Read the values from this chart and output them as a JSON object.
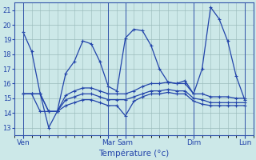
{
  "xlabel": "Température (°c)",
  "bg_color": "#cce8e8",
  "grid_color": "#99bbbb",
  "line_color": "#2244aa",
  "ylim": [
    12.5,
    21.5
  ],
  "yticks": [
    13,
    14,
    15,
    16,
    17,
    18,
    19,
    20,
    21
  ],
  "xlim": [
    0,
    14
  ],
  "xtick_major_positions": [
    0.5,
    5.5,
    6.5,
    10.5,
    13.5
  ],
  "xtick_major_labels": [
    "Ven",
    "Mar",
    "Sam",
    "Dim",
    "Lun"
  ],
  "vline_positions": [
    0.5,
    5.5,
    6.5,
    10.5,
    13.5
  ],
  "series": [
    {
      "x": [
        0.5,
        1.0,
        1.5,
        2.0,
        2.5,
        3.0,
        3.5,
        4.0,
        4.5,
        5.0,
        5.5,
        6.0,
        6.5,
        7.0,
        7.5,
        8.0,
        8.5,
        9.0,
        9.5,
        10.0,
        10.5,
        11.0,
        11.5,
        12.0,
        12.5,
        13.0,
        13.5
      ],
      "y": [
        19.5,
        18.2,
        15.3,
        13.0,
        14.1,
        16.7,
        17.5,
        18.9,
        18.7,
        17.5,
        15.8,
        15.5,
        19.1,
        19.7,
        19.6,
        18.6,
        17.0,
        16.1,
        16.0,
        16.2,
        15.3,
        17.0,
        21.2,
        20.4,
        18.9,
        16.5,
        14.9
      ]
    },
    {
      "x": [
        0.5,
        1.0,
        1.5,
        2.0,
        2.5,
        3.0,
        3.5,
        4.0,
        4.5,
        5.0,
        5.5,
        6.0,
        6.5,
        7.0,
        7.5,
        8.0,
        8.5,
        9.0,
        9.5,
        10.0,
        10.5,
        11.0,
        11.5,
        12.0,
        12.5,
        13.0,
        13.5
      ],
      "y": [
        15.3,
        15.3,
        15.3,
        14.1,
        14.1,
        15.2,
        15.5,
        15.7,
        15.7,
        15.5,
        15.3,
        15.3,
        15.3,
        15.5,
        15.8,
        16.0,
        16.0,
        16.1,
        16.0,
        16.0,
        15.3,
        15.3,
        15.1,
        15.1,
        15.1,
        15.0,
        15.0
      ]
    },
    {
      "x": [
        0.5,
        1.0,
        1.5,
        2.0,
        2.5,
        3.0,
        3.5,
        4.0,
        4.5,
        5.0,
        5.5,
        6.0,
        6.5,
        7.0,
        7.5,
        8.0,
        8.5,
        9.0,
        9.5,
        10.0,
        10.5,
        11.0,
        11.5,
        12.0,
        12.5,
        13.0,
        13.5
      ],
      "y": [
        15.3,
        15.3,
        15.3,
        14.1,
        14.1,
        14.9,
        15.1,
        15.3,
        15.3,
        15.1,
        14.9,
        14.9,
        14.9,
        15.1,
        15.3,
        15.5,
        15.5,
        15.6,
        15.5,
        15.5,
        15.0,
        14.9,
        14.7,
        14.7,
        14.7,
        14.7,
        14.7
      ]
    },
    {
      "x": [
        0.5,
        1.0,
        1.5,
        2.0,
        2.5,
        3.0,
        3.5,
        4.0,
        4.5,
        5.0,
        5.5,
        6.0,
        6.5,
        7.0,
        7.5,
        8.0,
        8.5,
        9.0,
        9.5,
        10.0,
        10.5,
        11.0,
        11.5,
        12.0,
        12.5,
        13.0,
        13.5
      ],
      "y": [
        15.3,
        15.3,
        14.1,
        14.1,
        14.1,
        14.5,
        14.7,
        14.9,
        14.9,
        14.7,
        14.5,
        14.5,
        13.8,
        14.8,
        15.1,
        15.3,
        15.3,
        15.4,
        15.3,
        15.3,
        14.8,
        14.6,
        14.5,
        14.5,
        14.5,
        14.5,
        14.5
      ]
    }
  ],
  "marker": "+",
  "markersize": 3,
  "linewidth": 0.9,
  "grid_minor_x_step": 0.5
}
